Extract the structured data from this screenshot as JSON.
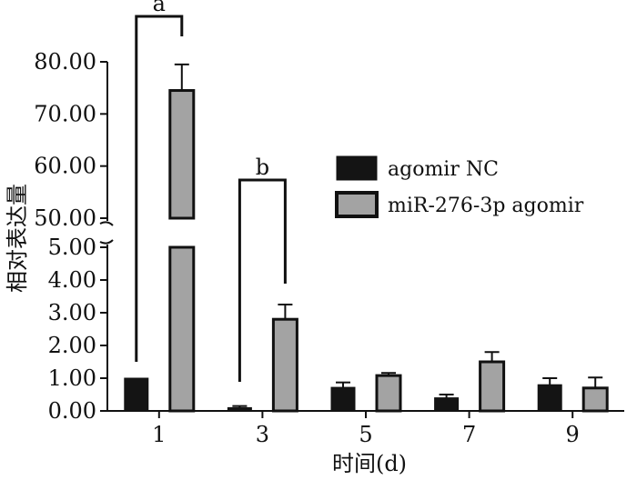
{
  "chart_data": {
    "type": "bar",
    "title": "",
    "xlabel": "时间(d)",
    "ylabel": "相对表达量",
    "categories": [
      "1",
      "3",
      "5",
      "7",
      "9"
    ],
    "series": [
      {
        "name": "agomir NC",
        "color": "#141414",
        "values": [
          1.0,
          0.1,
          0.72,
          0.4,
          0.8
        ],
        "errors": [
          0.0,
          0.05,
          0.15,
          0.1,
          0.2
        ]
      },
      {
        "name": "miR-276-3p agomir",
        "color": "#a3a3a3",
        "values": [
          74.5,
          2.8,
          1.08,
          1.5,
          0.7
        ],
        "errors": [
          5.0,
          0.45,
          0.08,
          0.3,
          0.32
        ]
      }
    ],
    "y_axis": {
      "break": true,
      "lower_segment": {
        "range": [
          0,
          5
        ],
        "ticks": [
          "0.00",
          "1.00",
          "2.00",
          "3.00",
          "4.00",
          "5.00"
        ]
      },
      "upper_segment": {
        "range": [
          50,
          80
        ],
        "ticks": [
          "50.00",
          "60.00",
          "70.00",
          "80.00"
        ]
      }
    },
    "significance": [
      {
        "category": "1",
        "label": "a"
      },
      {
        "category": "3",
        "label": "b"
      }
    ],
    "legend_position": "right",
    "grid": false
  }
}
